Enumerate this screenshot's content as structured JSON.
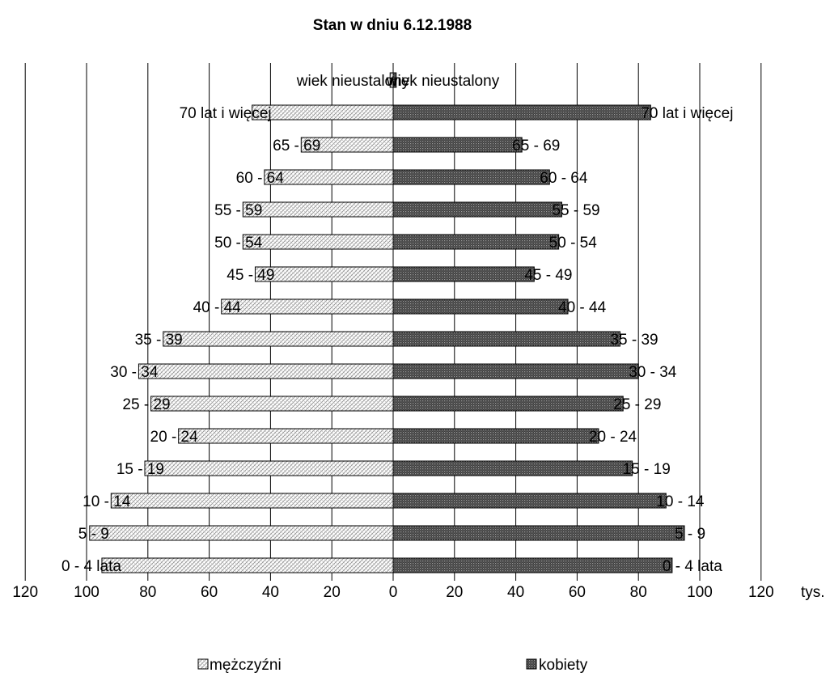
{
  "chart_data": {
    "type": "bar",
    "orientation": "horizontal",
    "layout": "population-pyramid",
    "title": "Stan w dniu 6.12.1988",
    "xlabel": "tys.",
    "ylabel": "",
    "xlim": [
      -120,
      120
    ],
    "x_ticks": [
      120,
      100,
      80,
      60,
      40,
      20,
      0,
      20,
      40,
      60,
      80,
      100,
      120
    ],
    "grid": true,
    "legend_position": "bottom",
    "categories": [
      "0 - 4 lata",
      "5 - 9",
      "10 - 14",
      "15 - 19",
      "20 - 24",
      "25 - 29",
      "30 - 34",
      "35 - 39",
      "40 - 44",
      "45 - 49",
      "50 - 54",
      "55 - 59",
      "60 - 64",
      "65 - 69",
      "70 lat i więcej",
      "wiek nieustalony"
    ],
    "series": [
      {
        "name": "mężczyźni",
        "side": "left",
        "color": "#ffffff",
        "pattern": "diagonal-crosshatch-light",
        "values": [
          95,
          99,
          92,
          81,
          70,
          79,
          83,
          75,
          56,
          45,
          49,
          49,
          42,
          30,
          46,
          1
        ]
      },
      {
        "name": "kobiety",
        "side": "right",
        "color": "#555555",
        "pattern": "dark-dots",
        "values": [
          91,
          95,
          89,
          78,
          67,
          75,
          80,
          74,
          57,
          46,
          54,
          55,
          51,
          42,
          84,
          1
        ]
      }
    ]
  }
}
